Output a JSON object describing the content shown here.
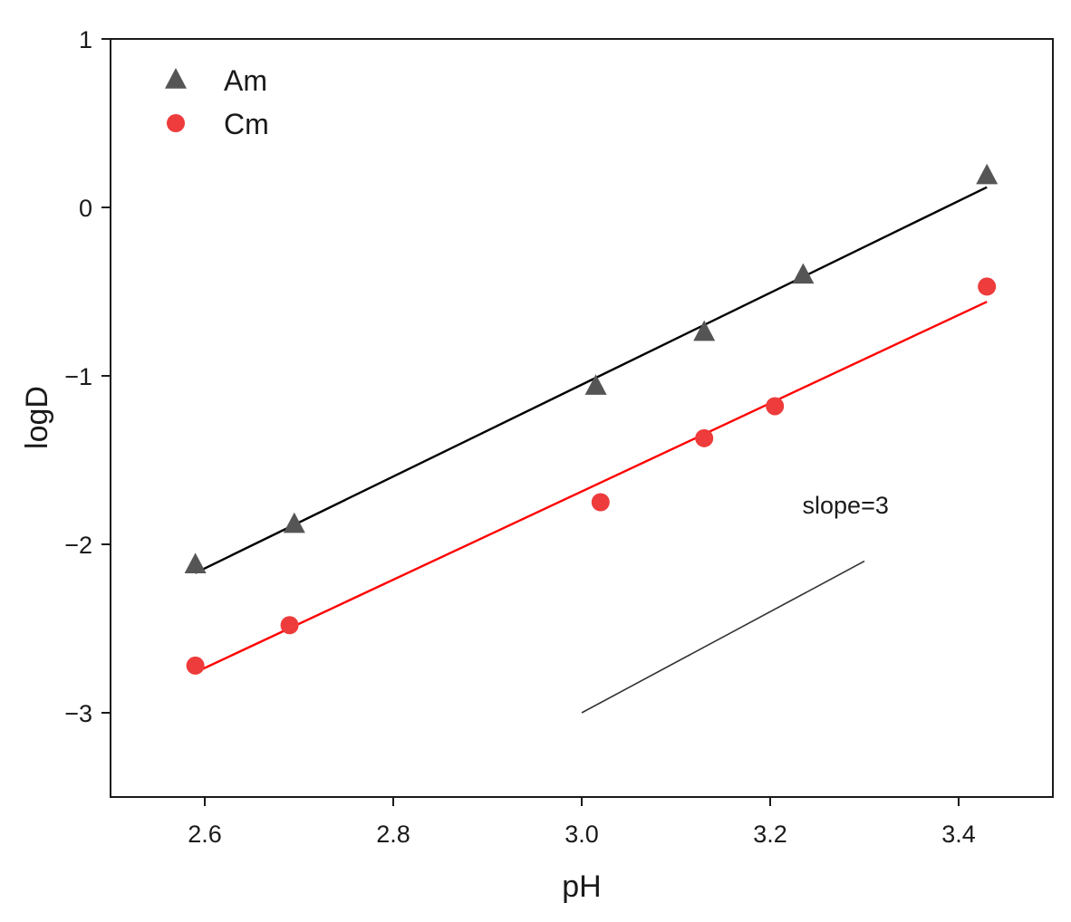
{
  "chart_data": {
    "type": "scatter",
    "xlabel": "pH",
    "ylabel": "logD",
    "xlim": [
      2.5,
      3.5
    ],
    "ylim": [
      -3.5,
      1
    ],
    "x_ticks": [
      2.6,
      2.8,
      3.0,
      3.2,
      3.4
    ],
    "x_tick_labels": [
      "2.6",
      "2.8",
      "3.0",
      "3.2",
      "3.4"
    ],
    "y_ticks": [
      1,
      0,
      -1,
      -2,
      -3
    ],
    "y_tick_labels": [
      "1",
      "0",
      "−1",
      "−2",
      "−3"
    ],
    "grid": false,
    "legend_position": "top-left",
    "series": [
      {
        "name": "Am",
        "marker": "triangle",
        "color": "#555555",
        "fit_color": "#000000",
        "x": [
          2.59,
          2.695,
          3.015,
          3.13,
          3.235,
          3.43
        ],
        "y": [
          -2.12,
          -1.88,
          -1.06,
          -0.74,
          -0.4,
          0.19
        ],
        "fit": {
          "x": [
            2.59,
            3.43
          ],
          "y": [
            -2.17,
            0.12
          ]
        }
      },
      {
        "name": "Cm",
        "marker": "circle",
        "color": "#ee3b3b",
        "fit_color": "#ff0000",
        "x": [
          2.59,
          2.69,
          3.02,
          3.13,
          3.205,
          3.43
        ],
        "y": [
          -2.72,
          -2.48,
          -1.75,
          -1.37,
          -1.18,
          -0.47
        ],
        "fit": {
          "x": [
            2.59,
            3.43
          ],
          "y": [
            -2.76,
            -0.56
          ]
        }
      }
    ],
    "annotations": [
      {
        "text": "slope=3",
        "text_position": [
          3.28,
          -1.77
        ],
        "line": {
          "x": [
            3.0,
            3.3
          ],
          "y": [
            -3.0,
            -2.1
          ]
        },
        "color": "#333333"
      }
    ]
  }
}
